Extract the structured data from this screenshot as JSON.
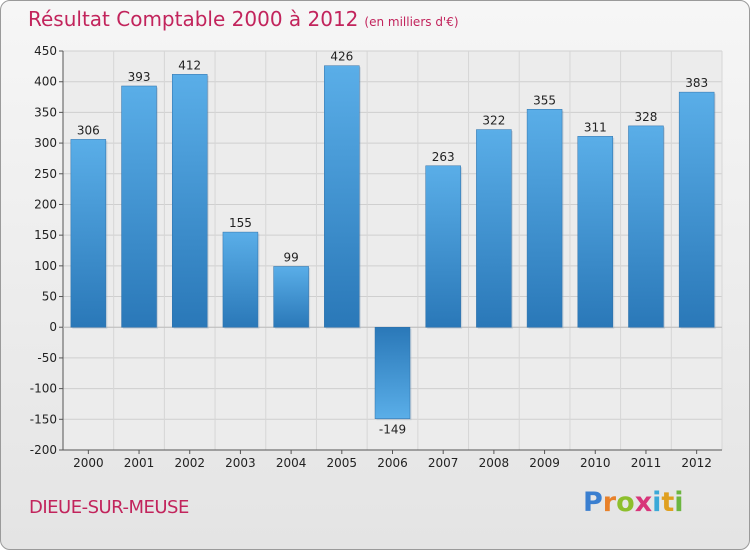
{
  "chart_data": {
    "type": "bar",
    "title": "Résultat Comptable 2000 à 2012",
    "unit_note": "(en milliers d'€)",
    "categories": [
      "2000",
      "2001",
      "2002",
      "2003",
      "2004",
      "2005",
      "2006",
      "2007",
      "2008",
      "2009",
      "2010",
      "2011",
      "2012"
    ],
    "values": [
      306,
      393,
      412,
      155,
      99,
      426,
      -149,
      263,
      322,
      355,
      311,
      328,
      383
    ],
    "ylim": [
      -200,
      450
    ],
    "yticks": [
      -200,
      -150,
      -100,
      -50,
      0,
      50,
      100,
      150,
      200,
      250,
      300,
      350,
      400,
      450
    ],
    "grid": true,
    "bar_color": "#3f94d6",
    "title_color": "#c2245c"
  },
  "footer": {
    "place": "DIEUE-SUR-MEUSE",
    "brand": {
      "p": "P",
      "r": "r",
      "o": "o",
      "x": "x",
      "i1": "i",
      "t": "t",
      "i2": "i"
    }
  }
}
